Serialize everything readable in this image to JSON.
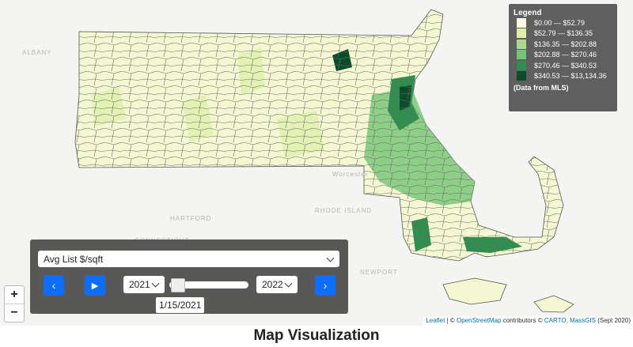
{
  "title": "Map Visualization",
  "legend": {
    "title": "Legend",
    "items": [
      {
        "label": "$0.00 — $52.79",
        "color": "#fbfbe2"
      },
      {
        "label": "$52.79 — $136.35",
        "color": "#dcefa5"
      },
      {
        "label": "$136.35 — $202.88",
        "color": "#a9d98e"
      },
      {
        "label": "$202.88 — $270.46",
        "color": "#74c476"
      },
      {
        "label": "$270.46 — $340.53",
        "color": "#2f8f4e"
      },
      {
        "label": "$340.53 — $13,134.36",
        "color": "#0b4d2a"
      }
    ],
    "note": "(Data from MLS)"
  },
  "controls": {
    "metric": "Avg List $/sqft",
    "start_year": "2021",
    "end_year": "2022",
    "date_tooltip": "1/15/2021"
  },
  "zoom": {
    "in": "+",
    "out": "−"
  },
  "place_labels": [
    "ALBANY",
    "HARTFORD",
    "CONNECTICUT",
    "RHODE ISLAND",
    "NEWPORT",
    "Worcester"
  ],
  "attribution": {
    "leaflet": "Leaflet",
    "sep": "| ©",
    "osm": "OpenStreetMap",
    "mid": "contributors ©",
    "carto": "CARTO, MassGIS",
    "tail": "(Sept 2020)"
  }
}
